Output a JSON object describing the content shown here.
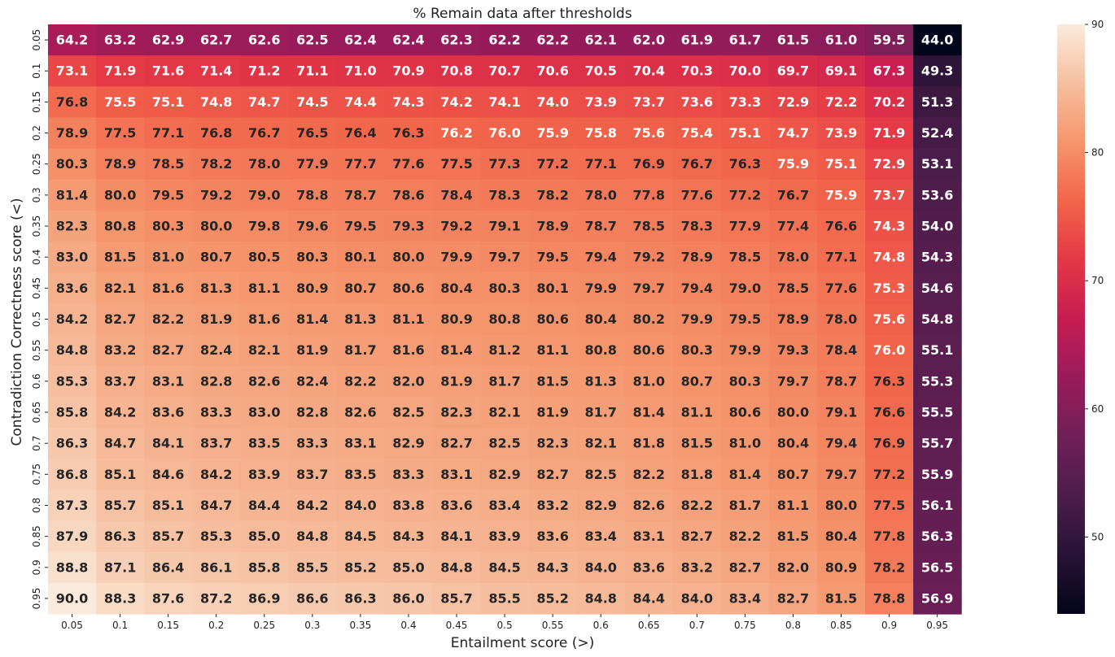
{
  "chart_data": {
    "type": "heatmap",
    "title": "% Remain data after thresholds",
    "xlabel": "Entailment score (>)",
    "ylabel": "Contradiction Correctness score (<)",
    "x": [
      "0.05",
      "0.1",
      "0.15",
      "0.2",
      "0.25",
      "0.3",
      "0.35",
      "0.4",
      "0.45",
      "0.5",
      "0.55",
      "0.6",
      "0.65",
      "0.7",
      "0.75",
      "0.8",
      "0.85",
      "0.9",
      "0.95"
    ],
    "y": [
      "0.05",
      "0.1",
      "0.15",
      "0.2",
      "0.25",
      "0.3",
      "0.35",
      "0.4",
      "0.45",
      "0.5",
      "0.55",
      "0.6",
      "0.65",
      "0.7",
      "0.75",
      "0.8",
      "0.85",
      "0.9",
      "0.95"
    ],
    "values": [
      [
        64.2,
        63.2,
        62.9,
        62.7,
        62.6,
        62.5,
        62.4,
        62.4,
        62.3,
        62.2,
        62.2,
        62.1,
        62.0,
        61.9,
        61.7,
        61.5,
        61.0,
        59.5,
        44.0
      ],
      [
        73.1,
        71.9,
        71.6,
        71.4,
        71.2,
        71.1,
        71.0,
        70.9,
        70.8,
        70.7,
        70.6,
        70.5,
        70.4,
        70.3,
        70.0,
        69.7,
        69.1,
        67.3,
        49.3
      ],
      [
        76.8,
        75.5,
        75.1,
        74.8,
        74.7,
        74.5,
        74.4,
        74.3,
        74.2,
        74.1,
        74.0,
        73.9,
        73.7,
        73.6,
        73.3,
        72.9,
        72.2,
        70.2,
        51.3
      ],
      [
        78.9,
        77.5,
        77.1,
        76.8,
        76.7,
        76.5,
        76.4,
        76.3,
        76.2,
        76.0,
        75.9,
        75.8,
        75.6,
        75.4,
        75.1,
        74.7,
        73.9,
        71.9,
        52.4
      ],
      [
        80.3,
        78.9,
        78.5,
        78.2,
        78.0,
        77.9,
        77.7,
        77.6,
        77.5,
        77.3,
        77.2,
        77.1,
        76.9,
        76.7,
        76.3,
        75.9,
        75.1,
        72.9,
        53.1
      ],
      [
        81.4,
        80.0,
        79.5,
        79.2,
        79.0,
        78.8,
        78.7,
        78.6,
        78.4,
        78.3,
        78.2,
        78.0,
        77.8,
        77.6,
        77.2,
        76.7,
        75.9,
        73.7,
        53.6
      ],
      [
        82.3,
        80.8,
        80.3,
        80.0,
        79.8,
        79.6,
        79.5,
        79.3,
        79.2,
        79.1,
        78.9,
        78.7,
        78.5,
        78.3,
        77.9,
        77.4,
        76.6,
        74.3,
        54.0
      ],
      [
        83.0,
        81.5,
        81.0,
        80.7,
        80.5,
        80.3,
        80.1,
        80.0,
        79.9,
        79.7,
        79.5,
        79.4,
        79.2,
        78.9,
        78.5,
        78.0,
        77.1,
        74.8,
        54.3
      ],
      [
        83.6,
        82.1,
        81.6,
        81.3,
        81.1,
        80.9,
        80.7,
        80.6,
        80.4,
        80.3,
        80.1,
        79.9,
        79.7,
        79.4,
        79.0,
        78.5,
        77.6,
        75.3,
        54.6
      ],
      [
        84.2,
        82.7,
        82.2,
        81.9,
        81.6,
        81.4,
        81.3,
        81.1,
        80.9,
        80.8,
        80.6,
        80.4,
        80.2,
        79.9,
        79.5,
        78.9,
        78.0,
        75.6,
        54.8
      ],
      [
        84.8,
        83.2,
        82.7,
        82.4,
        82.1,
        81.9,
        81.7,
        81.6,
        81.4,
        81.2,
        81.1,
        80.8,
        80.6,
        80.3,
        79.9,
        79.3,
        78.4,
        76.0,
        55.1
      ],
      [
        85.3,
        83.7,
        83.1,
        82.8,
        82.6,
        82.4,
        82.2,
        82.0,
        81.9,
        81.7,
        81.5,
        81.3,
        81.0,
        80.7,
        80.3,
        79.7,
        78.7,
        76.3,
        55.3
      ],
      [
        85.8,
        84.2,
        83.6,
        83.3,
        83.0,
        82.8,
        82.6,
        82.5,
        82.3,
        82.1,
        81.9,
        81.7,
        81.4,
        81.1,
        80.6,
        80.0,
        79.1,
        76.6,
        55.5
      ],
      [
        86.3,
        84.7,
        84.1,
        83.7,
        83.5,
        83.3,
        83.1,
        82.9,
        82.7,
        82.5,
        82.3,
        82.1,
        81.8,
        81.5,
        81.0,
        80.4,
        79.4,
        76.9,
        55.7
      ],
      [
        86.8,
        85.1,
        84.6,
        84.2,
        83.9,
        83.7,
        83.5,
        83.3,
        83.1,
        82.9,
        82.7,
        82.5,
        82.2,
        81.8,
        81.4,
        80.7,
        79.7,
        77.2,
        55.9
      ],
      [
        87.3,
        85.7,
        85.1,
        84.7,
        84.4,
        84.2,
        84.0,
        83.8,
        83.6,
        83.4,
        83.2,
        82.9,
        82.6,
        82.2,
        81.7,
        81.1,
        80.0,
        77.5,
        56.1
      ],
      [
        87.9,
        86.3,
        85.7,
        85.3,
        85.0,
        84.8,
        84.5,
        84.3,
        84.1,
        83.9,
        83.6,
        83.4,
        83.1,
        82.7,
        82.2,
        81.5,
        80.4,
        77.8,
        56.3
      ],
      [
        88.8,
        87.1,
        86.4,
        86.1,
        85.8,
        85.5,
        85.2,
        85.0,
        84.8,
        84.5,
        84.3,
        84.0,
        83.6,
        83.2,
        82.7,
        82.0,
        80.9,
        78.2,
        56.5
      ],
      [
        90.0,
        88.3,
        87.6,
        87.2,
        86.9,
        86.6,
        86.3,
        86.0,
        85.7,
        85.5,
        85.2,
        84.8,
        84.4,
        84.0,
        83.4,
        82.7,
        81.5,
        78.8,
        56.9
      ]
    ],
    "colorbar": {
      "range": [
        44.0,
        90.0
      ],
      "ticks": [
        "50",
        "60",
        "70",
        "80",
        "90"
      ],
      "colormap": "rocket"
    },
    "grid": false,
    "legend": "colorbar-right"
  }
}
